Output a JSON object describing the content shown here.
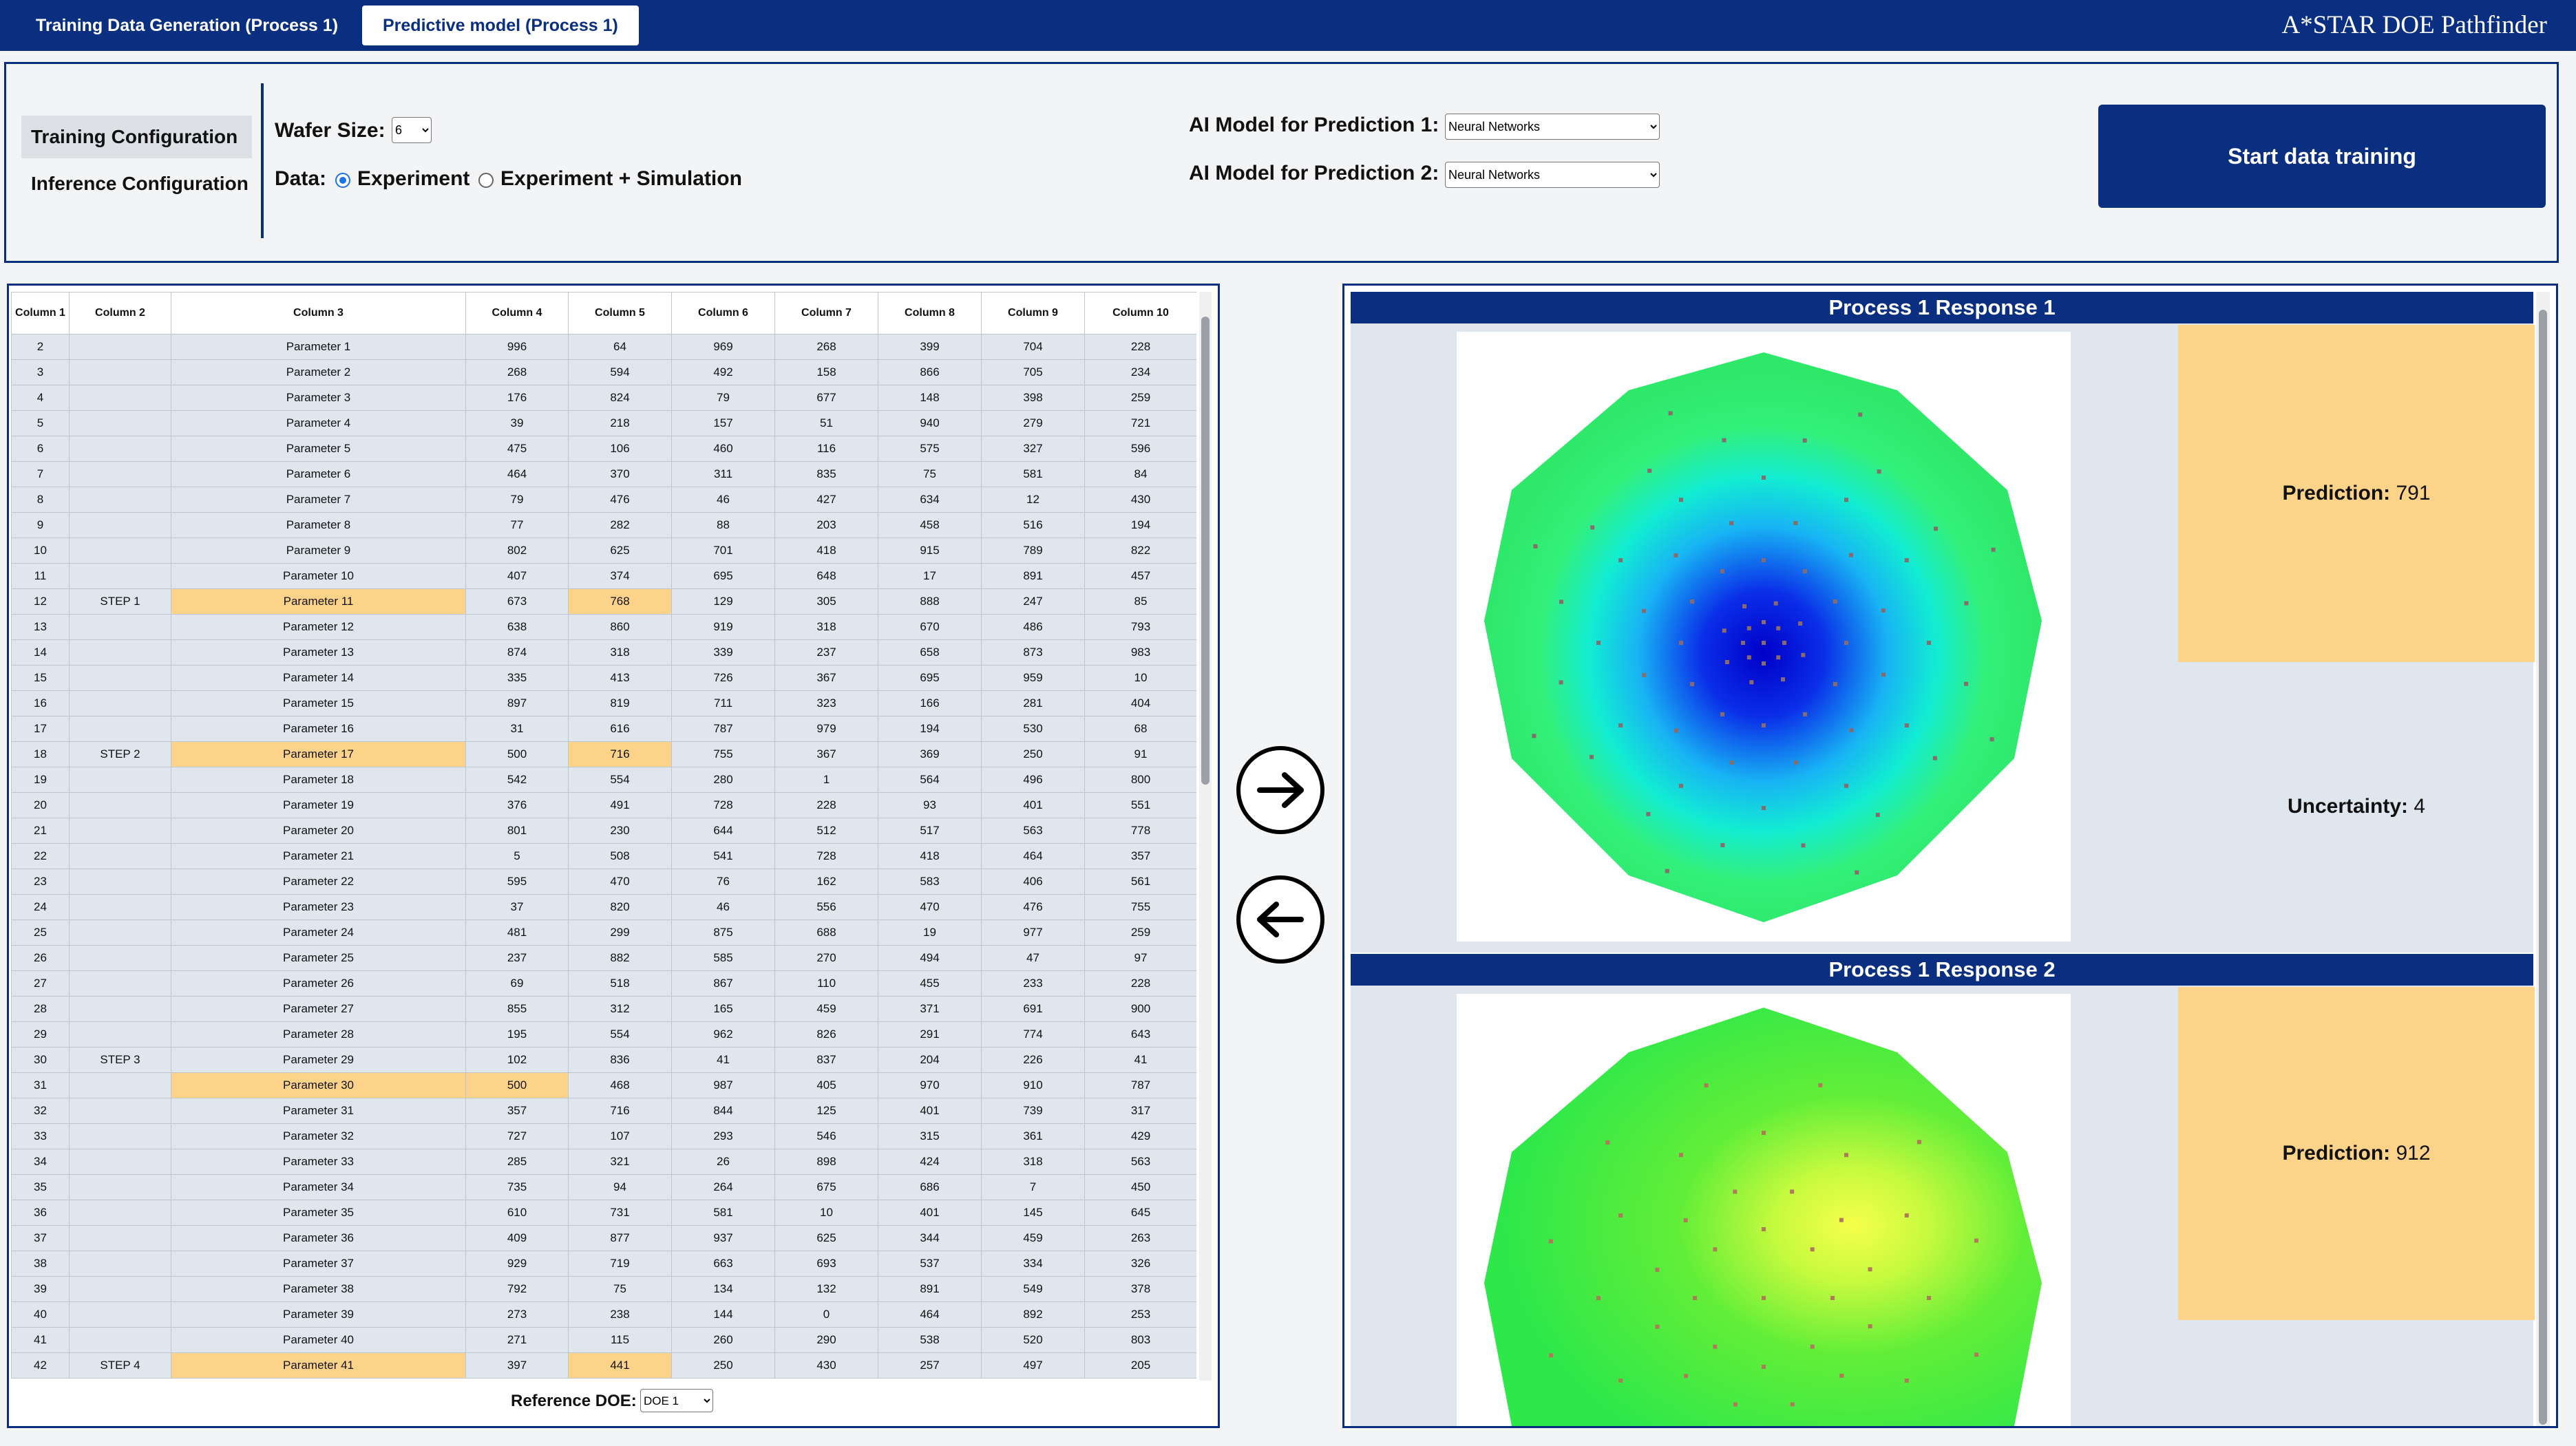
{
  "tabs": [
    "Training Data Generation (Process 1)",
    "Predictive model (Process 1)"
  ],
  "brand": "A*STAR DOE Pathfinder",
  "config": {
    "nav": [
      "Training Configuration",
      "Inference Configuration"
    ],
    "wafer_size_label": "Wafer Size:",
    "wafer_size_value": "6",
    "data_label": "Data:",
    "data_options": [
      "Experiment",
      "Experiment + Simulation"
    ],
    "data_selected": "Experiment",
    "ai_model_1_label": "AI Model for Prediction 1:",
    "ai_model_1_value": "Neural Networks",
    "ai_model_2_label": "AI Model for Prediction 2:",
    "ai_model_2_value": "Neural Networks",
    "start_button": "Start data training"
  },
  "table": {
    "headers": [
      "Column 1",
      "Column 2",
      "Column 3",
      "Column 4",
      "Column 5",
      "Column 6",
      "Column 7",
      "Column 8",
      "Column 9",
      "Column 10"
    ],
    "rows": [
      [
        "2",
        "",
        "Parameter 1",
        "996",
        "64",
        "969",
        "268",
        "399",
        "704",
        "228"
      ],
      [
        "3",
        "",
        "Parameter 2",
        "268",
        "594",
        "492",
        "158",
        "866",
        "705",
        "234"
      ],
      [
        "4",
        "",
        "Parameter 3",
        "176",
        "824",
        "79",
        "677",
        "148",
        "398",
        "259"
      ],
      [
        "5",
        "",
        "Parameter 4",
        "39",
        "218",
        "157",
        "51",
        "940",
        "279",
        "721"
      ],
      [
        "6",
        "",
        "Parameter 5",
        "475",
        "106",
        "460",
        "116",
        "575",
        "327",
        "596"
      ],
      [
        "7",
        "",
        "Parameter 6",
        "464",
        "370",
        "311",
        "835",
        "75",
        "581",
        "84"
      ],
      [
        "8",
        "",
        "Parameter 7",
        "79",
        "476",
        "46",
        "427",
        "634",
        "12",
        "430"
      ],
      [
        "9",
        "",
        "Parameter 8",
        "77",
        "282",
        "88",
        "203",
        "458",
        "516",
        "194"
      ],
      [
        "10",
        "",
        "Parameter 9",
        "802",
        "625",
        "701",
        "418",
        "915",
        "789",
        "822"
      ],
      [
        "11",
        "",
        "Parameter 10",
        "407",
        "374",
        "695",
        "648",
        "17",
        "891",
        "457"
      ],
      [
        "12",
        "STEP 1",
        "Parameter 11",
        "673",
        "768",
        "129",
        "305",
        "888",
        "247",
        "85"
      ],
      [
        "13",
        "",
        "Parameter 12",
        "638",
        "860",
        "919",
        "318",
        "670",
        "486",
        "793"
      ],
      [
        "14",
        "",
        "Parameter 13",
        "874",
        "318",
        "339",
        "237",
        "658",
        "873",
        "983"
      ],
      [
        "15",
        "",
        "Parameter 14",
        "335",
        "413",
        "726",
        "367",
        "695",
        "959",
        "10"
      ],
      [
        "16",
        "",
        "Parameter 15",
        "897",
        "819",
        "711",
        "323",
        "166",
        "281",
        "404"
      ],
      [
        "17",
        "",
        "Parameter 16",
        "31",
        "616",
        "787",
        "979",
        "194",
        "530",
        "68"
      ],
      [
        "18",
        "STEP 2",
        "Parameter 17",
        "500",
        "716",
        "755",
        "367",
        "369",
        "250",
        "91"
      ],
      [
        "19",
        "",
        "Parameter 18",
        "542",
        "554",
        "280",
        "1",
        "564",
        "496",
        "800"
      ],
      [
        "20",
        "",
        "Parameter 19",
        "376",
        "491",
        "728",
        "228",
        "93",
        "401",
        "551"
      ],
      [
        "21",
        "",
        "Parameter 20",
        "801",
        "230",
        "644",
        "512",
        "517",
        "563",
        "778"
      ],
      [
        "22",
        "",
        "Parameter 21",
        "5",
        "508",
        "541",
        "728",
        "418",
        "464",
        "357"
      ],
      [
        "23",
        "",
        "Parameter 22",
        "595",
        "470",
        "76",
        "162",
        "583",
        "406",
        "561"
      ],
      [
        "24",
        "",
        "Parameter 23",
        "37",
        "820",
        "46",
        "556",
        "470",
        "476",
        "755"
      ],
      [
        "25",
        "",
        "Parameter 24",
        "481",
        "299",
        "875",
        "688",
        "19",
        "977",
        "259"
      ],
      [
        "26",
        "",
        "Parameter 25",
        "237",
        "882",
        "585",
        "270",
        "494",
        "47",
        "97"
      ],
      [
        "27",
        "",
        "Parameter 26",
        "69",
        "518",
        "867",
        "110",
        "455",
        "233",
        "228"
      ],
      [
        "28",
        "",
        "Parameter 27",
        "855",
        "312",
        "165",
        "459",
        "371",
        "691",
        "900"
      ],
      [
        "29",
        "",
        "Parameter 28",
        "195",
        "554",
        "962",
        "826",
        "291",
        "774",
        "643"
      ],
      [
        "30",
        "STEP 3",
        "Parameter 29",
        "102",
        "836",
        "41",
        "837",
        "204",
        "226",
        "41"
      ],
      [
        "31",
        "",
        "Parameter 30",
        "500",
        "468",
        "987",
        "405",
        "970",
        "910",
        "787"
      ],
      [
        "32",
        "",
        "Parameter 31",
        "357",
        "716",
        "844",
        "125",
        "401",
        "739",
        "317"
      ],
      [
        "33",
        "",
        "Parameter 32",
        "727",
        "107",
        "293",
        "546",
        "315",
        "361",
        "429"
      ],
      [
        "34",
        "",
        "Parameter 33",
        "285",
        "321",
        "26",
        "898",
        "424",
        "318",
        "563"
      ],
      [
        "35",
        "",
        "Parameter 34",
        "735",
        "94",
        "264",
        "675",
        "686",
        "7",
        "450"
      ],
      [
        "36",
        "",
        "Parameter 35",
        "610",
        "731",
        "581",
        "10",
        "401",
        "145",
        "645"
      ],
      [
        "37",
        "",
        "Parameter 36",
        "409",
        "877",
        "937",
        "625",
        "344",
        "459",
        "263"
      ],
      [
        "38",
        "",
        "Parameter 37",
        "929",
        "719",
        "663",
        "693",
        "537",
        "334",
        "326"
      ],
      [
        "39",
        "",
        "Parameter 38",
        "792",
        "75",
        "134",
        "132",
        "891",
        "549",
        "378"
      ],
      [
        "40",
        "",
        "Parameter 39",
        "273",
        "238",
        "144",
        "0",
        "464",
        "892",
        "253"
      ],
      [
        "41",
        "",
        "Parameter 40",
        "271",
        "115",
        "260",
        "290",
        "538",
        "520",
        "803"
      ],
      [
        "42",
        "STEP 4",
        "Parameter 41",
        "397",
        "441",
        "250",
        "430",
        "257",
        "497",
        "205"
      ]
    ],
    "highlights": [
      [
        10,
        2
      ],
      [
        10,
        4
      ],
      [
        16,
        2
      ],
      [
        16,
        4
      ],
      [
        29,
        2
      ],
      [
        29,
        3
      ],
      [
        40,
        2
      ],
      [
        40,
        4
      ]
    ],
    "highlight_color": "#fdd38a",
    "reference_label": "Reference DOE:",
    "reference_value": "DOE 1"
  },
  "responses": [
    {
      "title": "Process 1 Response 1",
      "prediction_label": "Prediction:",
      "prediction_value": "791",
      "uncertainty_label": "Uncertainty:",
      "uncertainty_value": "4"
    },
    {
      "title": "Process 1 Response 2",
      "prediction_label": "Prediction:",
      "prediction_value": "912"
    }
  ],
  "colors": {
    "brand_navy": "#0b2f80",
    "highlight": "#fdd38a",
    "row_bg": "#dfe6ee"
  }
}
